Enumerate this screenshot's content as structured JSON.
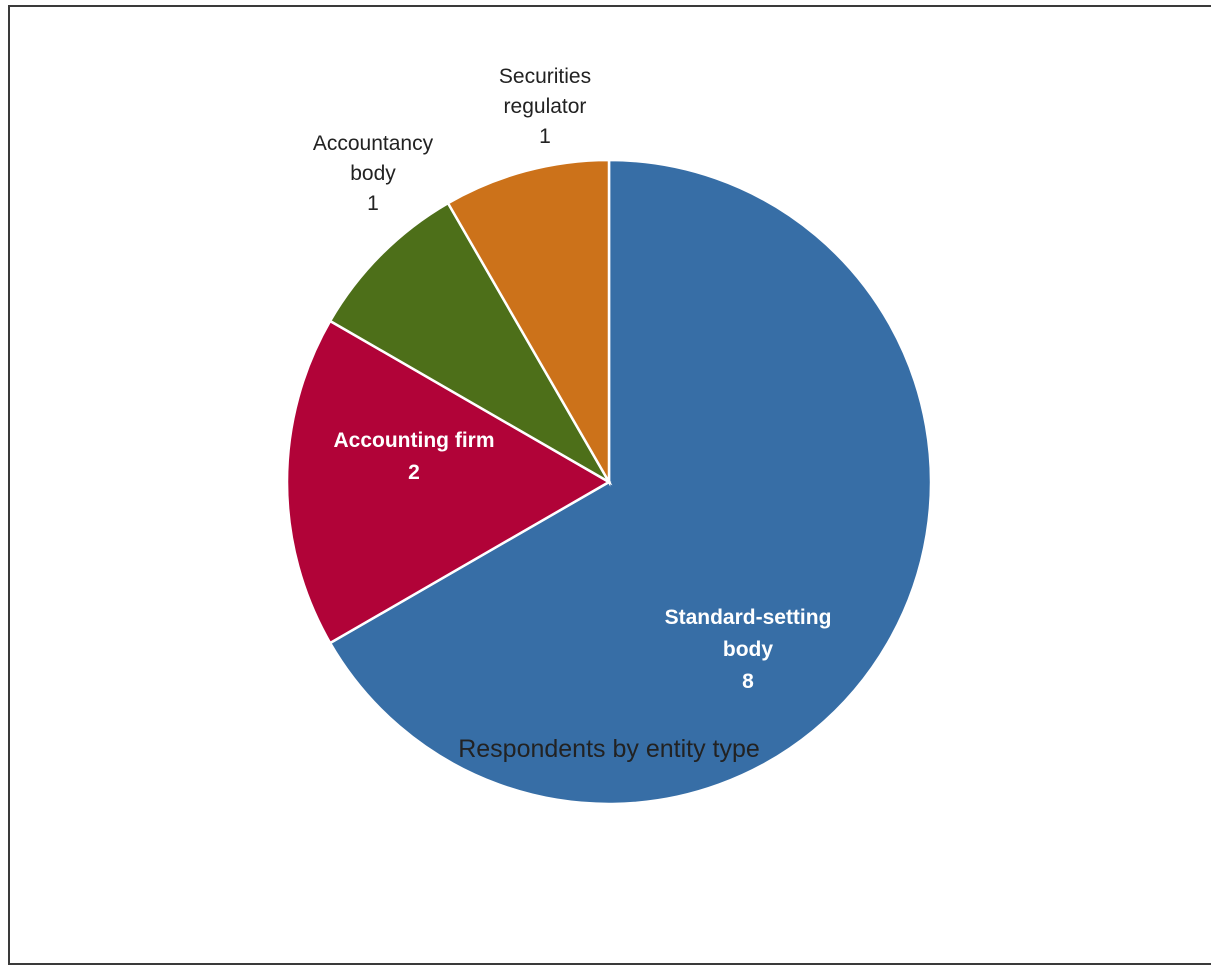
{
  "chart_data": {
    "type": "pie",
    "title": "Respondents by entity type",
    "slices": [
      {
        "name": "Standard-setting body",
        "value": 8,
        "label_lines": [
          "Standard-setting",
          "body",
          "8"
        ],
        "color": "#376ea6",
        "label_style": "inside"
      },
      {
        "name": "Accounting firm",
        "value": 2,
        "label_lines": [
          "Accounting firm",
          "2"
        ],
        "color": "#b10338",
        "label_style": "inside"
      },
      {
        "name": "Accountancy body",
        "value": 1,
        "label_lines": [
          "Accountancy",
          "body",
          "1"
        ],
        "color": "#4d6f19",
        "label_style": "outside"
      },
      {
        "name": "Securities regulator",
        "value": 1,
        "label_lines": [
          "Securities",
          "regulator",
          "1"
        ],
        "color": "#cc721a",
        "label_style": "outside"
      }
    ],
    "start_angle_deg": 0,
    "direction": "clockwise",
    "legend": "none"
  }
}
